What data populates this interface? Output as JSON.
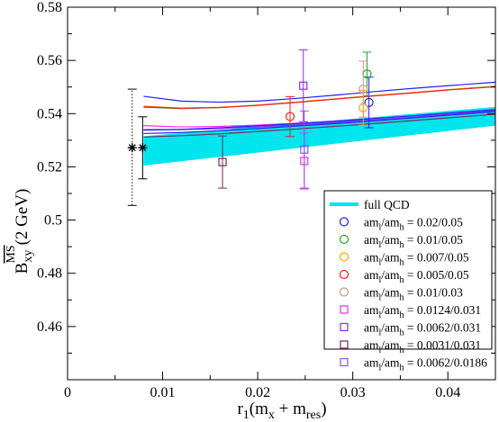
{
  "chart_data": {
    "type": "scatter",
    "xlabel": "r_1(m_x + m_res)",
    "ylabel": "B_xy^MS-bar(2 GeV)",
    "xlim": [
      0,
      0.045
    ],
    "ylim": [
      0.44,
      0.58
    ],
    "x_ticks": [
      0,
      0.01,
      0.02,
      0.03,
      0.04
    ],
    "x_tick_labels": [
      "0",
      "0.01",
      "0.02",
      "0.03",
      "0.04"
    ],
    "y_ticks": [
      0.46,
      0.48,
      0.5,
      0.52,
      0.54,
      0.56,
      0.58
    ],
    "y_tick_labels": [
      "0.46",
      "0.48",
      "0.5",
      "0.52",
      "0.54",
      "0.56",
      "0.58"
    ],
    "legend_placement": "bottom-right",
    "band": {
      "name": "full QCD",
      "color": "#00e5ee",
      "x": [
        0.008,
        0.045
      ],
      "lower": [
        0.5205,
        0.5355
      ],
      "upper": [
        0.5315,
        0.5425
      ]
    },
    "physical_points": [
      {
        "x": 0.0068,
        "y": 0.5272,
        "yerr_low": 0.5055,
        "yerr_high": 0.5492,
        "marker": "star",
        "style": "dotted"
      },
      {
        "x": 0.0079,
        "y": 0.5272,
        "yerr_low": 0.5155,
        "yerr_high": 0.5388,
        "marker": "star",
        "style": "solid"
      }
    ],
    "series": [
      {
        "name": "am_l/am_h = 0.02/0.05",
        "marker": "circle",
        "color": "#2020ff",
        "points": [
          {
            "x": 0.0317,
            "y": 0.5442,
            "yerr": 0.0095
          }
        ]
      },
      {
        "name": "am_l/am_h = 0.01/0.05",
        "marker": "circle",
        "color": "#22aa22",
        "points": [
          {
            "x": 0.0315,
            "y": 0.5549,
            "yerr": 0.0082
          }
        ]
      },
      {
        "name": "am_l/am_h = 0.007/0.05",
        "marker": "circle",
        "color": "#ffa500",
        "points": [
          {
            "x": 0.0311,
            "y": 0.5422,
            "yerr": 0.0065
          }
        ]
      },
      {
        "name": "am_l/am_h = 0.005/0.05",
        "marker": "circle",
        "color": "#ee2020",
        "points": [
          {
            "x": 0.0234,
            "y": 0.5389,
            "yerr": 0.0075
          }
        ]
      },
      {
        "name": "am_l/am_h = 0.01/0.03",
        "marker": "circle",
        "color": "#c89a8a",
        "points": [
          {
            "x": 0.0311,
            "y": 0.5492,
            "yerr": 0.0105
          }
        ]
      },
      {
        "name": "am_l/am_h = 0.0124/0.031",
        "marker": "square",
        "color": "#ee30ee",
        "points": [
          {
            "x": 0.0249,
            "y": 0.5222,
            "yerr": 0.0105
          }
        ]
      },
      {
        "name": "am_l/am_h = 0.0062/0.031",
        "marker": "square",
        "color": "#a020f0",
        "points": [
          {
            "x": 0.0248,
            "y": 0.5505,
            "yerr": 0.0135
          }
        ]
      },
      {
        "name": "am_l/am_h = 0.0031/0.031",
        "marker": "square",
        "color": "#7a2a5a",
        "points": [
          {
            "x": 0.0163,
            "y": 0.5218,
            "yerr": 0.0098
          }
        ]
      },
      {
        "name": "am_l/am_h = 0.0062/0.0186",
        "marker": "square",
        "color": "#8855ee",
        "points": [
          {
            "x": 0.0249,
            "y": 0.5265,
            "yerr": 0.0145
          }
        ]
      }
    ],
    "fit_curves": [
      {
        "color": "#2020ff",
        "x": [
          0.008,
          0.012,
          0.016,
          0.02,
          0.024,
          0.028,
          0.032,
          0.036,
          0.04,
          0.045
        ],
        "y": [
          0.5465,
          0.5447,
          0.5443,
          0.5447,
          0.5457,
          0.5469,
          0.5482,
          0.5494,
          0.5505,
          0.5518
        ]
      },
      {
        "color": "#22aa22",
        "x": [
          0.008,
          0.012,
          0.016,
          0.02,
          0.024,
          0.028,
          0.032,
          0.036,
          0.04,
          0.045
        ],
        "y": [
          0.5424,
          0.5419,
          0.5423,
          0.5432,
          0.5443,
          0.5455,
          0.5467,
          0.5478,
          0.549,
          0.5503
        ]
      },
      {
        "color": "#ffa500",
        "x": [
          0.008,
          0.012,
          0.016,
          0.02,
          0.024,
          0.028,
          0.032,
          0.036,
          0.04,
          0.045
        ],
        "y": [
          0.5428,
          0.5421,
          0.5424,
          0.5432,
          0.5443,
          0.5455,
          0.5467,
          0.5478,
          0.549,
          0.5502
        ]
      },
      {
        "color": "#ee2020",
        "x": [
          0.008,
          0.012,
          0.016,
          0.02,
          0.024,
          0.028,
          0.032,
          0.036,
          0.04,
          0.045
        ],
        "y": [
          0.5426,
          0.542,
          0.5423,
          0.5431,
          0.5442,
          0.5454,
          0.5466,
          0.5477,
          0.5489,
          0.5501
        ]
      },
      {
        "color": "#ee30ee",
        "x": [
          0.008,
          0.012,
          0.016,
          0.02,
          0.024,
          0.028,
          0.032,
          0.036,
          0.04,
          0.045
        ],
        "y": [
          0.5355,
          0.535,
          0.5352,
          0.5357,
          0.5364,
          0.5372,
          0.5381,
          0.5391,
          0.5401,
          0.5414
        ]
      },
      {
        "color": "#a020f0",
        "x": [
          0.008,
          0.012,
          0.016,
          0.02,
          0.024,
          0.028,
          0.032,
          0.036,
          0.04,
          0.045
        ],
        "y": [
          0.534,
          0.534,
          0.5344,
          0.535,
          0.5357,
          0.5366,
          0.5376,
          0.5386,
          0.5397,
          0.541
        ]
      },
      {
        "color": "#2020ff",
        "x": [
          0.008,
          0.012,
          0.016,
          0.02,
          0.024,
          0.028,
          0.032,
          0.036,
          0.04,
          0.045
        ],
        "y": [
          0.5338,
          0.5341,
          0.5347,
          0.5354,
          0.5362,
          0.5371,
          0.5381,
          0.5391,
          0.5402,
          0.5415
        ]
      },
      {
        "color": "#2020ff",
        "x": [
          0.008,
          0.012,
          0.016,
          0.02,
          0.024,
          0.028,
          0.032,
          0.036,
          0.04,
          0.045
        ],
        "y": [
          0.5325,
          0.5329,
          0.5336,
          0.5344,
          0.5353,
          0.5362,
          0.5372,
          0.5383,
          0.5394,
          0.5408
        ]
      },
      {
        "color": "#7a2a5a",
        "x": [
          0.008,
          0.012,
          0.016,
          0.02,
          0.024,
          0.028,
          0.032,
          0.036,
          0.04,
          0.045
        ],
        "y": [
          0.5312,
          0.5317,
          0.5324,
          0.5333,
          0.5342,
          0.5352,
          0.5362,
          0.5373,
          0.5384,
          0.5398
        ]
      }
    ]
  },
  "legend": {
    "entries": [
      {
        "lhs_a": "am",
        "lhs_a_sub": "l",
        "lhs_b": "/am",
        "lhs_b_sub": "h",
        "value": " = 0.02/0.05"
      },
      {
        "lhs_a": "am",
        "lhs_a_sub": "l",
        "lhs_b": "/am",
        "lhs_b_sub": "h",
        "value": " = 0.01/0.05"
      },
      {
        "lhs_a": "am",
        "lhs_a_sub": "l",
        "lhs_b": "/am",
        "lhs_b_sub": "h",
        "value": " = 0.007/0.05"
      },
      {
        "lhs_a": "am",
        "lhs_a_sub": "l",
        "lhs_b": "/am",
        "lhs_b_sub": "h",
        "value": " = 0.005/0.05"
      },
      {
        "lhs_a": "am",
        "lhs_a_sub": "l",
        "lhs_b": "/am",
        "lhs_b_sub": "h",
        "value": " = 0.01/0.03"
      },
      {
        "lhs_a": "am",
        "lhs_a_sub": "l",
        "lhs_b": "/am",
        "lhs_b_sub": "h",
        "value": " = 0.0124/0.031"
      },
      {
        "lhs_a": "am",
        "lhs_a_sub": "l",
        "lhs_b": "/am",
        "lhs_b_sub": "h",
        "value": " = 0.0062/0.031"
      },
      {
        "lhs_a": "am",
        "lhs_a_sub": "l",
        "lhs_b": "/am",
        "lhs_b_sub": "h",
        "value": " = 0.0031/0.031"
      },
      {
        "lhs_a": "am",
        "lhs_a_sub": "l",
        "lhs_b": "/am",
        "lhs_b_sub": "h",
        "value": " = 0.0062/0.0186"
      }
    ]
  },
  "axis_titles": {
    "x_main": "r",
    "x_sub1": "1",
    "x_mid": "(m",
    "x_sub2": "x",
    "x_plus": " + m",
    "x_sub3": "res",
    "x_close": ")",
    "y_main": "B",
    "y_sub": "xy",
    "y_sup": "MS",
    "y_rest": "(2 GeV)"
  }
}
